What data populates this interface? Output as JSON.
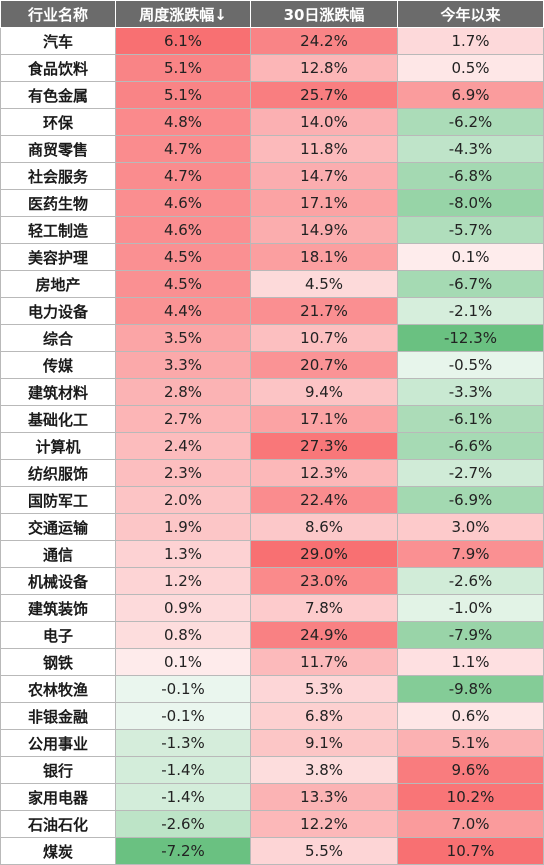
{
  "headers": [
    "行业名称",
    "周度涨跌幅↓",
    "30日涨跌幅",
    "今年以来"
  ],
  "rows": [
    [
      "汽车",
      "6.1%",
      "24.2%",
      "1.7%"
    ],
    [
      "食品饮料",
      "5.1%",
      "12.8%",
      "0.5%"
    ],
    [
      "有色金属",
      "5.1%",
      "25.7%",
      "6.9%"
    ],
    [
      "环保",
      "4.8%",
      "14.0%",
      "-6.2%"
    ],
    [
      "商贸零售",
      "4.7%",
      "11.8%",
      "-4.3%"
    ],
    [
      "社会服务",
      "4.7%",
      "14.7%",
      "-6.8%"
    ],
    [
      "医药生物",
      "4.6%",
      "17.1%",
      "-8.0%"
    ],
    [
      "轻工制造",
      "4.6%",
      "14.9%",
      "-5.7%"
    ],
    [
      "美容护理",
      "4.5%",
      "18.1%",
      "0.1%"
    ],
    [
      "房地产",
      "4.5%",
      "4.5%",
      "-6.7%"
    ],
    [
      "电力设备",
      "4.4%",
      "21.7%",
      "-2.1%"
    ],
    [
      "综合",
      "3.5%",
      "10.7%",
      "-12.3%"
    ],
    [
      "传媒",
      "3.3%",
      "20.7%",
      "-0.5%"
    ],
    [
      "建筑材料",
      "2.8%",
      "9.4%",
      "-3.3%"
    ],
    [
      "基础化工",
      "2.7%",
      "17.1%",
      "-6.1%"
    ],
    [
      "计算机",
      "2.4%",
      "27.3%",
      "-6.6%"
    ],
    [
      "纺织服饰",
      "2.3%",
      "12.3%",
      "-2.7%"
    ],
    [
      "国防军工",
      "2.0%",
      "22.4%",
      "-6.9%"
    ],
    [
      "交通运输",
      "1.9%",
      "8.6%",
      "3.0%"
    ],
    [
      "通信",
      "1.3%",
      "29.0%",
      "7.9%"
    ],
    [
      "机械设备",
      "1.2%",
      "23.0%",
      "-2.6%"
    ],
    [
      "建筑装饰",
      "0.9%",
      "7.8%",
      "-1.0%"
    ],
    [
      "电子",
      "0.8%",
      "24.9%",
      "-7.9%"
    ],
    [
      "钢铁",
      "0.1%",
      "11.7%",
      "1.1%"
    ],
    [
      "农林牧渔",
      "-0.1%",
      "5.3%",
      "-9.8%"
    ],
    [
      "非银金融",
      "-0.1%",
      "6.8%",
      "0.6%"
    ],
    [
      "公用事业",
      "-1.3%",
      "9.1%",
      "5.1%"
    ],
    [
      "银行",
      "-1.4%",
      "3.8%",
      "9.6%"
    ],
    [
      "家用电器",
      "-1.4%",
      "13.3%",
      "10.2%"
    ],
    [
      "石油石化",
      "-2.6%",
      "12.2%",
      "7.0%"
    ],
    [
      "煤炭",
      "-7.2%",
      "5.5%",
      "10.7%"
    ]
  ],
  "colors": {
    "header_bg": "#6b6b6b",
    "positive_max": "#f8696b",
    "negative_max": "#63be7b",
    "neutral": "#ffffff"
  }
}
